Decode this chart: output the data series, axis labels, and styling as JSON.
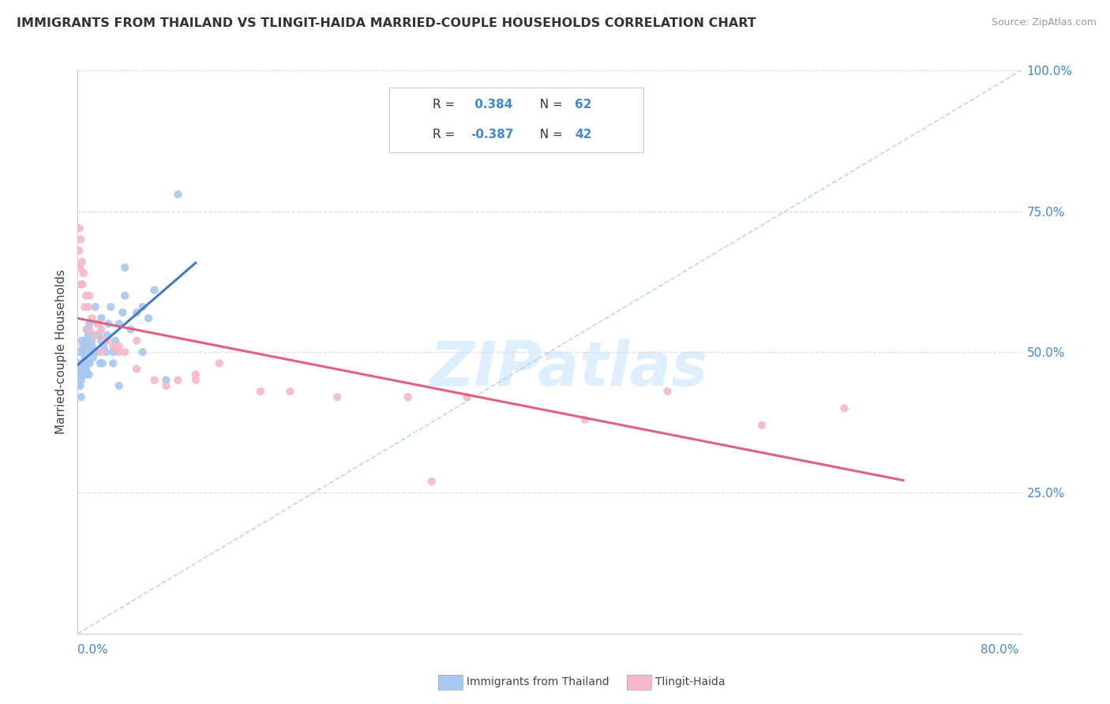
{
  "title": "IMMIGRANTS FROM THAILAND VS TLINGIT-HAIDA MARRIED-COUPLE HOUSEHOLDS CORRELATION CHART",
  "source": "Source: ZipAtlas.com",
  "ylabel_label": "Married-couple Households",
  "legend_label_blue": "Immigrants from Thailand",
  "legend_label_pink": "Tlingit-Haida",
  "R_blue": 0.384,
  "N_blue": 62,
  "R_pink": -0.387,
  "N_pink": 42,
  "color_blue": "#a8c8f0",
  "color_pink": "#f5b8c8",
  "trendline_blue": "#4477cc",
  "trendline_pink": "#e06080",
  "diag_color": "#aaccee",
  "watermark_color": "#ddeeff",
  "x_min": 0.0,
  "x_max": 80.0,
  "y_min": 0.0,
  "y_max": 100.0,
  "blue_points_x": [
    0.1,
    0.15,
    0.2,
    0.25,
    0.3,
    0.35,
    0.4,
    0.45,
    0.5,
    0.55,
    0.6,
    0.65,
    0.7,
    0.75,
    0.8,
    0.85,
    0.9,
    0.95,
    1.0,
    1.1,
    1.2,
    1.3,
    1.4,
    1.5,
    1.6,
    1.7,
    1.8,
    1.9,
    2.0,
    2.1,
    2.2,
    2.4,
    2.6,
    2.8,
    3.0,
    3.2,
    3.5,
    3.8,
    4.0,
    4.5,
    5.0,
    5.5,
    6.0,
    6.5,
    7.5,
    0.2,
    0.3,
    0.4,
    0.5,
    0.6,
    0.7,
    0.8,
    1.0,
    1.2,
    1.5,
    2.0,
    2.5,
    3.0,
    3.5,
    4.0,
    5.5,
    8.5
  ],
  "blue_points_y": [
    48,
    46,
    50,
    47,
    45,
    52,
    48,
    51,
    50,
    46,
    49,
    52,
    47,
    54,
    51,
    48,
    53,
    46,
    55,
    50,
    52,
    49,
    53,
    58,
    50,
    55,
    53,
    48,
    56,
    48,
    51,
    50,
    55,
    58,
    50,
    52,
    55,
    57,
    60,
    54,
    57,
    58,
    56,
    61,
    45,
    44,
    42,
    46,
    47,
    48,
    47,
    46,
    48,
    51,
    50,
    52,
    53,
    48,
    44,
    65,
    50,
    78
  ],
  "pink_points_x": [
    0.1,
    0.15,
    0.2,
    0.25,
    0.3,
    0.35,
    0.5,
    0.7,
    0.9,
    1.0,
    1.2,
    1.5,
    1.8,
    2.0,
    2.2,
    2.5,
    3.0,
    3.5,
    4.0,
    5.0,
    6.5,
    7.5,
    8.5,
    10.0,
    12.0,
    15.5,
    18.0,
    22.0,
    28.0,
    33.0,
    43.0,
    50.0,
    58.0,
    65.0,
    0.4,
    0.6,
    1.0,
    2.0,
    3.5,
    5.0,
    10.0,
    30.0
  ],
  "pink_points_y": [
    68,
    72,
    65,
    70,
    62,
    66,
    64,
    60,
    58,
    60,
    56,
    53,
    55,
    54,
    52,
    52,
    51,
    50,
    50,
    52,
    45,
    44,
    45,
    45,
    48,
    43,
    43,
    42,
    42,
    42,
    38,
    43,
    37,
    40,
    62,
    58,
    54,
    50,
    51,
    47,
    46,
    27
  ]
}
